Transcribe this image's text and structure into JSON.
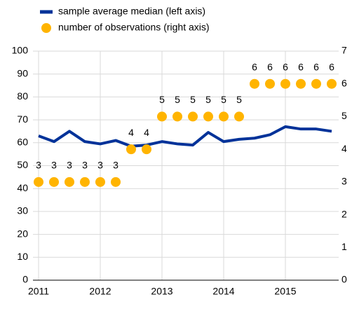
{
  "chart_data": {
    "type": "line",
    "categories": [
      "2011",
      null,
      null,
      null,
      "2012",
      null,
      null,
      null,
      "2013",
      null,
      null,
      null,
      "2014",
      null,
      null,
      null,
      "2015",
      null,
      null,
      null
    ],
    "series": [
      {
        "name": "sample average median (left axis)",
        "color": "#003299",
        "type": "line",
        "values": [
          63,
          60.5,
          65,
          60.5,
          59.5,
          61,
          58.5,
          59,
          60.5,
          59.5,
          59,
          64.5,
          60.5,
          61.5,
          62,
          63.5,
          67,
          66,
          66,
          65
        ]
      },
      {
        "name": "number of observations (right axis)",
        "color": "#FFB400",
        "type": "scatter",
        "axis": "y2",
        "values": [
          3,
          3,
          3,
          3,
          3,
          3,
          4,
          4,
          5,
          5,
          5,
          5,
          5,
          5,
          6,
          6,
          6,
          6,
          6,
          6
        ]
      }
    ],
    "ylim": [
      0,
      100
    ],
    "yticks": [
      0,
      10,
      20,
      30,
      40,
      50,
      60,
      70,
      80,
      90,
      100
    ],
    "y2lim": [
      0,
      7
    ],
    "y2ticks": [
      0,
      1,
      2,
      3,
      4,
      5,
      6,
      7
    ],
    "grid": true
  }
}
